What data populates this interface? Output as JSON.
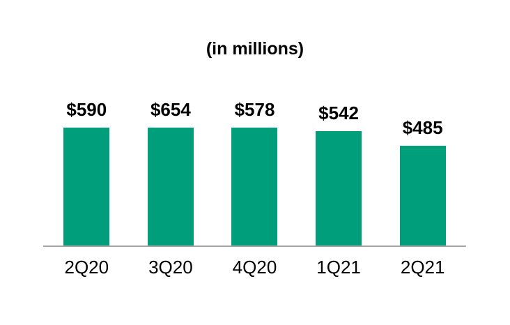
{
  "chart_data": {
    "type": "bar",
    "title": "(in millions)",
    "categories": [
      "2Q20",
      "3Q20",
      "4Q20",
      "1Q21",
      "2Q21"
    ],
    "values": [
      590,
      654,
      578,
      542,
      485
    ],
    "value_labels": [
      "$590",
      "$654",
      "$578",
      "$542",
      "$485"
    ],
    "xlabel": "",
    "ylabel": "",
    "ylim": [
      100,
      660
    ],
    "grid": false,
    "legend": "none",
    "bar_color": "#009E7B",
    "axis_line_color": "#A6A6A6",
    "label_color": "#000000"
  }
}
